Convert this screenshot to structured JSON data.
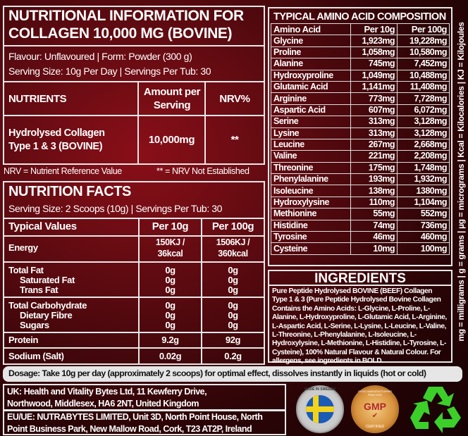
{
  "collagen_info": {
    "title_line1": "NUTRITIONAL INFORMATION FOR",
    "title_line2": "COLLAGEN 10,000 MG (BOVINE)",
    "flavour_form": "Flavour: Unflavoured | Form: Powder (300 g)",
    "serving": "Serving Size: 10g Per Day  |  Servings Per Tub: 30",
    "headers": [
      "NUTRIENTS",
      "Amount per Serving",
      "NRV%"
    ],
    "row": {
      "name_line1": "Hydrolysed Collagen",
      "name_line2": "Type 1 & 3 (BOVINE)",
      "amount": "10,000mg",
      "nrv": "**"
    }
  },
  "footnote": {
    "left": "NRV = Nutrient Reference Value",
    "right": "** = NRV Not Established"
  },
  "nutrition_facts": {
    "title": "NUTRITION FACTS",
    "serving": "Serving Size: 2 Scoops (10g)  |  Servings Per Tub: 30",
    "headers": [
      "Typical Values",
      "Per 10g",
      "Per 100g"
    ],
    "energy": {
      "label": "Energy",
      "per10_line1": "150KJ /",
      "per10_line2": "36kcal",
      "per100_line1": "1506KJ /",
      "per100_line2": "360kcal"
    },
    "fat": [
      {
        "label": "Total Fat",
        "per10": "0g",
        "per100": "0g"
      },
      {
        "label": "Saturated Fat",
        "per10": "0g",
        "per100": "0g"
      },
      {
        "label": "Trans Fat",
        "per10": "0g",
        "per100": "0g"
      }
    ],
    "carbs": [
      {
        "label": "Total Carbohydrate",
        "per10": "0g",
        "per100": "0g"
      },
      {
        "label": "Dietary Fibre",
        "per10": "0g",
        "per100": "0g"
      },
      {
        "label": "Sugars",
        "per10": "0g",
        "per100": "0g"
      }
    ],
    "protein": {
      "label": "Protein",
      "per10": "9.2g",
      "per100": "92g"
    },
    "sodium": {
      "label": "Sodium (Salt)",
      "per10": "0.02g",
      "per100": "0.2g"
    }
  },
  "amino": {
    "title": "TYPICAL AMINO ACID COMPOSITION",
    "headers": [
      "Amino Acid",
      "Per 10g",
      "Per 100g"
    ],
    "rows": [
      [
        "Glycine",
        "1,923mg",
        "19,228mg"
      ],
      [
        "Proline",
        "1,058mg",
        "10,580mg"
      ],
      [
        "Alanine",
        "745mg",
        "7,452mg"
      ],
      [
        "Hydroxyproline",
        "1,049mg",
        "10,488mg"
      ],
      [
        "Glutamic Acid",
        "1,141mg",
        "11,408mg"
      ],
      [
        "Arginine",
        "773mg",
        "7,728mg"
      ],
      [
        "Aspartic Acid",
        "607mg",
        "6,072mg"
      ],
      [
        "Serine",
        "313mg",
        "3,128mg"
      ],
      [
        "Lysine",
        "313mg",
        "3,128mg"
      ],
      [
        "Leucine",
        "267mg",
        "2,668mg"
      ],
      [
        "Valine",
        "221mg",
        "2,208mg"
      ],
      [
        "Threonine",
        "175mg",
        "1,748mg"
      ],
      [
        "Phenylalanine",
        "193mg",
        "1,932mg"
      ],
      [
        "Isoleucine",
        "138mg",
        "1380mg"
      ],
      [
        "Hydroxylysine",
        "110mg",
        "1,104mg"
      ],
      [
        "Methionine",
        "55mg",
        "552mg"
      ],
      [
        "Histidine",
        "74mg",
        "736mg"
      ],
      [
        "Tyrosine",
        "46mg",
        "460mg"
      ],
      [
        "Cysteine",
        "10mg",
        "100mg"
      ]
    ]
  },
  "ingredients": {
    "title": "INGREDIENTS",
    "text_start": "Pure Peptide Hydrolysed ",
    "bold1": "BOVINE (BEEF)",
    "text_mid": " Collagen Type 1 & 3 (Pure Peptide Hydrolysed Bovine Collagen Contains the Amino Acids: L-Glycine, L-Proline, L-Alanine, L-Hydroxyproline, L-Glutamic Acid, L-Arginine, L-Aspartic Acid, L-Serine, L-Lysine, L-Leucine, L-Valine, L-Threonine, L-Phenylalanine, L-Isoleucine, L-Hydroxylysine, L-Methionine, L-Histidine, L-Tyrosine, L-Cysteine), 100% Natural Flavour & Natural Colour. For allergens, see ingredients in ",
    "bold2": "BOLD",
    "text_end": "."
  },
  "units_legend": "mg = milligrams | g = grams | µg = micrograms | Kcal = Kilocalories | KJ = Kilojoules",
  "dosage": "Dosage: Take 10g per day (approximately 2 scoops) for optimal effect, dissolves instantly in liquids (hot or cold)",
  "address": {
    "uk": "UK: Health and Vitality Bytes Ltd, 11 Kewferry Drive, Northwood, Middlesex, HA6 2NT, United Kingdom",
    "eu": "EU/UE: NUTRABYTES LIMITED, Unit 3D, North Point House, North Point Business Park, New Mallow Road, Cork, T23 AT2P, Ireland"
  },
  "badges": {
    "sweden": "MADE IN SWEDEN",
    "gmp": "GMP",
    "gmp_ring": "GOOD MANUFACTURING PRACTICE",
    "gmp_bottom": "CERTIFIED"
  },
  "colors": {
    "background": "#5a0a10",
    "border": "#e8e8e8",
    "recycle": "#3ccf2a"
  }
}
